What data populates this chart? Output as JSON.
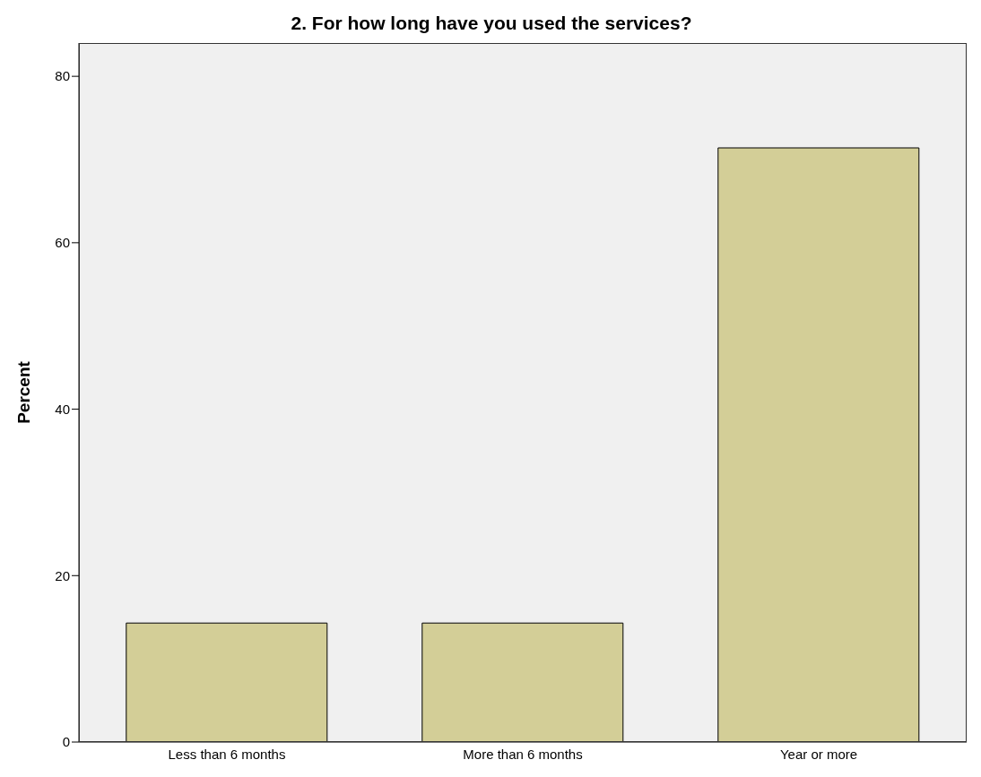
{
  "chart_data": {
    "type": "bar",
    "title": "2. For how long have you used the services?",
    "ylabel": "Percent",
    "categories": [
      "Less than 6 months",
      "More than 6 months",
      "Year or more"
    ],
    "values": [
      14.3,
      14.3,
      71.4
    ],
    "color": "#d3ce97",
    "ylim": [
      0,
      84
    ],
    "yticks": [
      0,
      20,
      40,
      60,
      80
    ],
    "grid": false
  }
}
